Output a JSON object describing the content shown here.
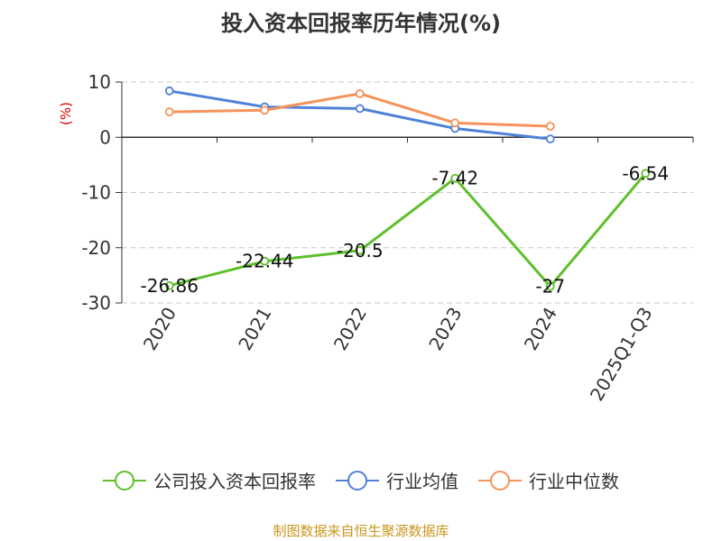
{
  "chart_data": {
    "type": "line",
    "title": "投入资本回报率历年情况(%)",
    "ylabel": "(%)",
    "xlabel": "",
    "categories": [
      "2020",
      "2021",
      "2022",
      "2023",
      "2024",
      "2025Q1-Q3"
    ],
    "ylim": [
      -30,
      10
    ],
    "yticks": [
      10,
      0,
      -10,
      -20,
      -30
    ],
    "grid": true,
    "legend_position": "bottom",
    "series": [
      {
        "name": "公司投入资本回报率",
        "color": "#5dc02a",
        "values": [
          -26.86,
          -22.44,
          -20.5,
          -7.42,
          -27,
          -6.54
        ],
        "labels": [
          "-26.86",
          "-22.44",
          "-20.5",
          "-7.42",
          "-27",
          "-6.54"
        ]
      },
      {
        "name": "行业均值",
        "color": "#4f81d8",
        "values": [
          8.4,
          5.5,
          5.2,
          1.6,
          -0.3,
          null
        ]
      },
      {
        "name": "行业中位数",
        "color": "#f5935a",
        "values": [
          4.6,
          4.9,
          7.9,
          2.6,
          2.0,
          null
        ]
      }
    ]
  },
  "footer": {
    "source": "制图数据来自恒生聚源数据库"
  }
}
